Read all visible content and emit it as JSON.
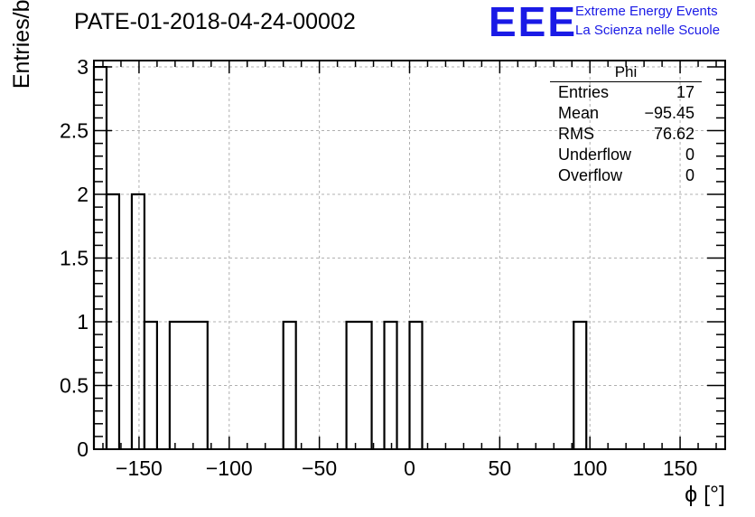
{
  "chart_data": {
    "type": "bar",
    "title": "PATE-01-2018-04-24-00002",
    "xlabel": "ϕ [°]",
    "ylabel": "Entries/bin",
    "xlim": [
      -175,
      175
    ],
    "ylim": [
      0,
      3.05
    ],
    "grid": true,
    "bin_width": 7,
    "bins": [
      {
        "x": [
          -175,
          -168
        ],
        "y": 3
      },
      {
        "x": [
          -168,
          -161
        ],
        "y": 2
      },
      {
        "x": [
          -154,
          -147
        ],
        "y": 2
      },
      {
        "x": [
          -147,
          -140
        ],
        "y": 1
      },
      {
        "x": [
          -133,
          -112
        ],
        "y": 1
      },
      {
        "x": [
          -70,
          -63
        ],
        "y": 1
      },
      {
        "x": [
          -35,
          -21
        ],
        "y": 1
      },
      {
        "x": [
          -14,
          -7
        ],
        "y": 1
      },
      {
        "x": [
          0,
          7
        ],
        "y": 1
      },
      {
        "x": [
          91,
          98
        ],
        "y": 1
      }
    ],
    "x_ticks": [
      -150,
      -100,
      -50,
      0,
      50,
      100,
      150
    ],
    "x_tick_labels": [
      "−150",
      "−100",
      "−50",
      "0",
      "50",
      "100",
      "150"
    ],
    "y_ticks": [
      0,
      0.5,
      1,
      1.5,
      2,
      2.5,
      3
    ],
    "y_tick_labels": [
      "0",
      "0.5",
      "1",
      "1.5",
      "2",
      "2.5",
      "3"
    ]
  },
  "stats_box": {
    "title": "Phi",
    "entries_label": "Entries",
    "entries_value": "17",
    "mean_label": "Mean",
    "mean_value": "−95.45",
    "rms_label": "RMS",
    "rms_value": "76.62",
    "underflow_label": "Underflow",
    "underflow_value": "0",
    "overflow_label": "Overflow",
    "overflow_value": "0"
  },
  "logo": {
    "mark": "EEE",
    "line1": "Extreme Energy Events",
    "line2": "La Scienza nelle Scuole",
    "color": "#1a1ae6"
  }
}
